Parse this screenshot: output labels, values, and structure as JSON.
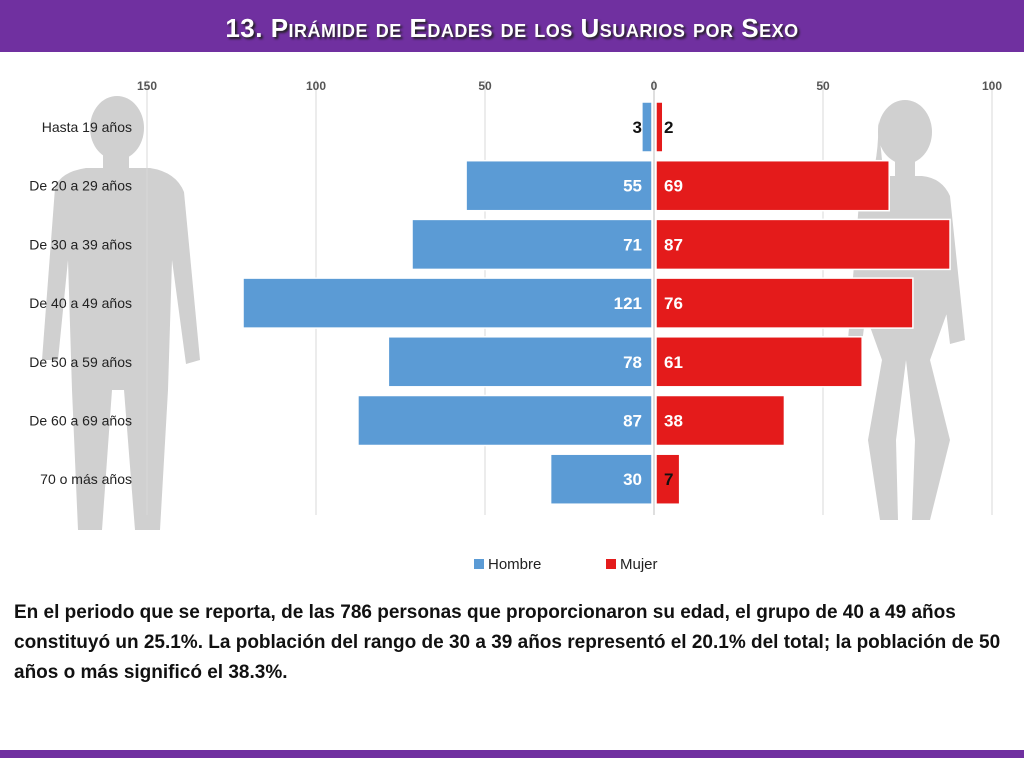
{
  "title": "13. Pirámide de Edades de los Usuarios por Sexo",
  "description": "En el periodo que se reporta, de las 786 personas que proporcionaron su edad, el grupo de 40 a 49 años constituyó un 25.1%. La población del rango de 30 a 39 años representó el 20.1% del total; la población de 50 años o más significó el 38.3%.",
  "chart_data": {
    "type": "bar",
    "orientation": "horizontal-population-pyramid",
    "categories": [
      "Hasta 19 años",
      "De 20 a 29 años",
      "De 30 a 39 años",
      "De 40 a 49 años",
      "De 50 a 59 años",
      "De 60 a 69 años",
      "70 o más años"
    ],
    "series": [
      {
        "name": "Hombre",
        "values": [
          3,
          55,
          71,
          121,
          78,
          87,
          30
        ],
        "color": "#5b9bd5",
        "side": "left"
      },
      {
        "name": "Mujer",
        "values": [
          2,
          69,
          87,
          76,
          61,
          38,
          7
        ],
        "color": "#e41b1b",
        "side": "right"
      }
    ],
    "left_ticks": [
      "150",
      "100",
      "50",
      "0"
    ],
    "right_ticks": [
      "50",
      "100"
    ],
    "xlim_left": [
      150,
      0
    ],
    "xlim_right": [
      0,
      100
    ],
    "grid": true,
    "legend_position": "bottom"
  }
}
